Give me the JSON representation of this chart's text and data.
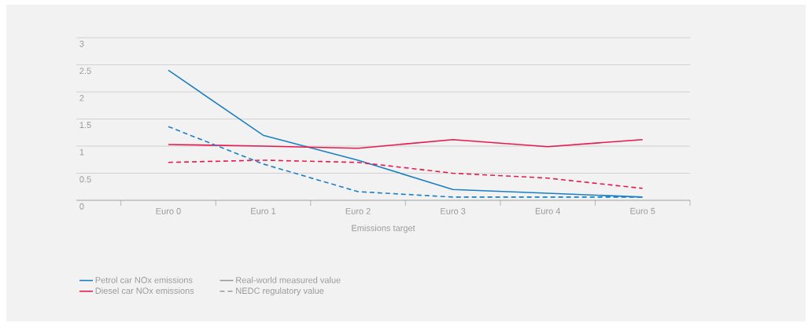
{
  "chart_data": {
    "type": "line",
    "xlabel": "Emissions target",
    "categories": [
      "Euro 0",
      "Euro 1",
      "Euro 2",
      "Euro 3",
      "Euro 4",
      "Euro 5"
    ],
    "ylim": [
      0,
      3
    ],
    "yticks": [
      0,
      0.5,
      1,
      1.5,
      2,
      2.5,
      3
    ],
    "grid": "y",
    "legend": "bottom",
    "marker": "none",
    "series": [
      {
        "name": "Petrol car NOx emissions",
        "color": "#1a80c4",
        "line_style": "solid",
        "values": [
          2.4,
          1.2,
          0.74,
          0.2,
          0.13,
          0.06
        ]
      },
      {
        "name": "Real-world measured value",
        "color": "#999999",
        "line_style": "solid",
        "values": [
          null,
          null,
          null,
          null,
          null,
          null
        ]
      },
      {
        "name": "Diesel car NOx emissions",
        "color": "#e8194f",
        "line_style": "solid",
        "values": [
          1.03,
          1.0,
          0.96,
          1.12,
          0.99,
          1.12
        ]
      },
      {
        "name": "NEDC regulatory value",
        "color": "#999999",
        "line_style": "dashed",
        "values": [
          null,
          null,
          null,
          null,
          null,
          null
        ]
      },
      {
        "color": "#1a80c4",
        "line_style": "dashed",
        "values": [
          1.36,
          0.67,
          0.16,
          0.06,
          0.06,
          0.06
        ]
      },
      {
        "color": "#e8194f",
        "line_style": "dashed",
        "values": [
          0.7,
          0.74,
          0.7,
          0.5,
          0.41,
          0.22
        ]
      }
    ]
  }
}
